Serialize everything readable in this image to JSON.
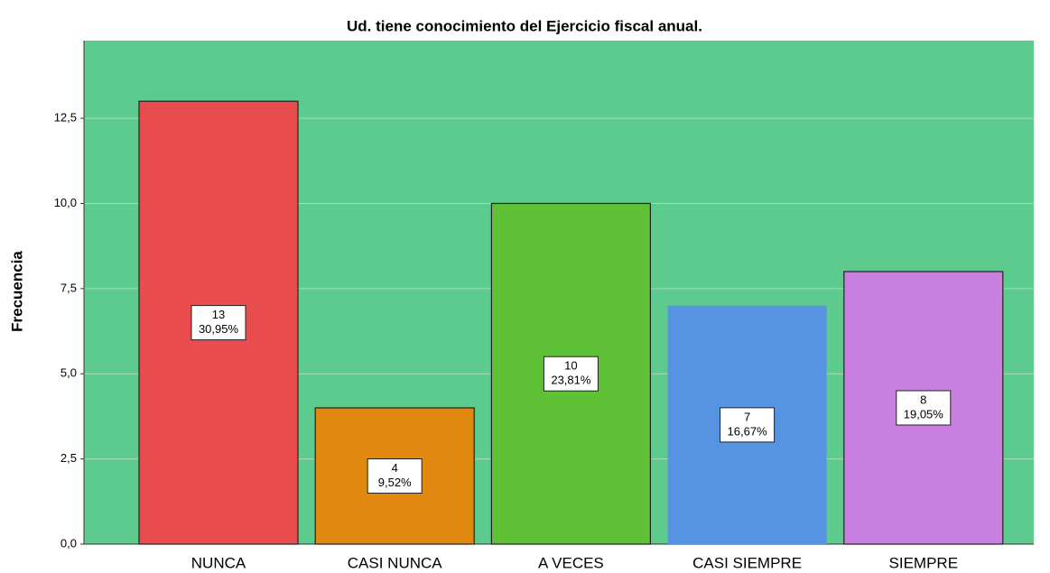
{
  "chart_data": {
    "type": "bar",
    "title": "Ud. tiene conocimiento del Ejercicio fiscal anual.",
    "y_label": "Frecuencia",
    "categories": [
      "NUNCA",
      "CASI NUNCA",
      "A VECES",
      "CASI SIEMPRE",
      "SIEMPRE"
    ],
    "values": [
      13,
      4,
      10,
      7,
      8
    ],
    "percentages": [
      30.95,
      9.52,
      23.81,
      16.67,
      19.05
    ],
    "percentage_labels": [
      "30,95%",
      "9,52%",
      "23,81%",
      "16,67%",
      "19,05%"
    ],
    "colors": [
      "#e84c4c",
      "#e0880f",
      "#5ec136",
      "#5694e2",
      "#c97fe0"
    ],
    "ylim": [
      0,
      14.78
    ],
    "yticks": [
      {
        "value": 0,
        "label": "0,0"
      },
      {
        "value": 2.5,
        "label": "2,5"
      },
      {
        "value": 5,
        "label": "5,0"
      },
      {
        "value": 7.5,
        "label": "7,5"
      },
      {
        "value": 10,
        "label": "10,0"
      },
      {
        "value": 12.5,
        "label": "12,5"
      }
    ],
    "grid": true
  }
}
